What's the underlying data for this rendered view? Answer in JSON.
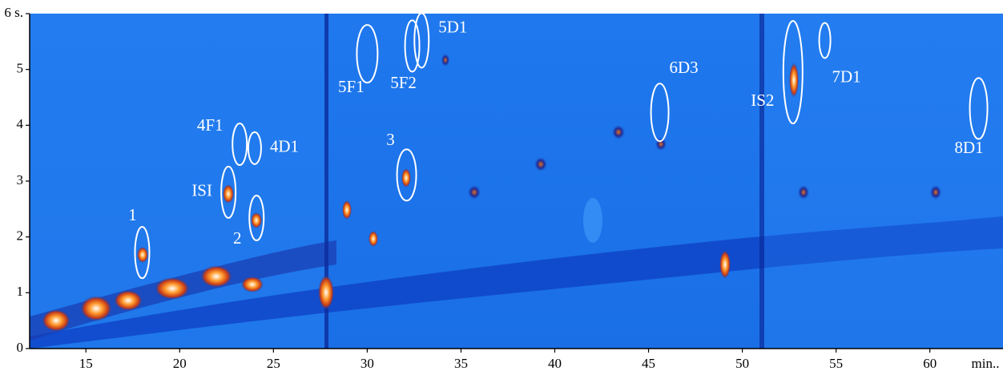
{
  "chart_data": {
    "type": "contour",
    "x_label": "min..",
    "xlim": [
      12,
      63.9
    ],
    "ylim": [
      0,
      6
    ],
    "xticks": [
      15,
      20,
      25,
      30,
      35,
      40,
      45,
      50,
      55,
      60
    ],
    "yticks": [
      0,
      1,
      2,
      3,
      4,
      5,
      {
        "value": 6,
        "label": "6 s."
      }
    ],
    "peaks": [
      {
        "label": "1",
        "x": 18.0,
        "y": 1.72
      },
      {
        "label": "ISI",
        "x": 22.6,
        "y": 2.8
      },
      {
        "label": "2",
        "x": 24.1,
        "y": 2.34
      },
      {
        "label": "4F1",
        "x": 23.2,
        "y": 3.66
      },
      {
        "label": "4D1",
        "x": 24.0,
        "y": 3.59
      },
      {
        "label": "5F1",
        "x": 30.0,
        "y": 5.28
      },
      {
        "label": "5F2",
        "x": 32.4,
        "y": 5.42
      },
      {
        "label": "5D1",
        "x": 32.9,
        "y": 5.52
      },
      {
        "label": "3",
        "x": 32.1,
        "y": 3.11
      },
      {
        "label": "6D3",
        "x": 45.6,
        "y": 4.23
      },
      {
        "label": "IS2",
        "x": 52.7,
        "y": 4.95
      },
      {
        "label": "7D1",
        "x": 54.4,
        "y": 5.52
      },
      {
        "label": "8D1",
        "x": 62.6,
        "y": 4.3
      }
    ]
  }
}
